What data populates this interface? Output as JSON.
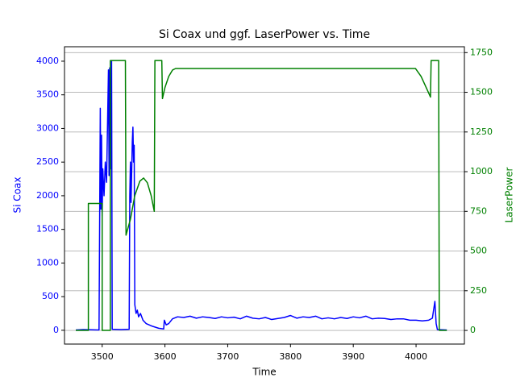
{
  "chart_data": {
    "type": "line",
    "title": "Si Coax und ggf. LaserPower vs. Time",
    "x_label": "Time",
    "y_label": "Si Coax",
    "y2_label": "LaserPower",
    "xlim": [
      3440,
      4077
    ],
    "xticks": [
      3500,
      3600,
      3700,
      3800,
      3900,
      4000
    ],
    "ylim": [
      -205,
      4215
    ],
    "yticks": [
      0,
      500,
      1000,
      1500,
      2000,
      2500,
      3000,
      3500,
      4000
    ],
    "y2lim": [
      -86,
      1787
    ],
    "y2ticks": [
      0,
      250,
      500,
      750,
      1000,
      1250,
      1500,
      1750
    ],
    "grid": "y2",
    "series": [
      {
        "name": "Si Coax",
        "color": "#0000ff",
        "axis": "y",
        "x": [
          3458,
          3470,
          3495,
          3497,
          3498,
          3499,
          3500,
          3501,
          3503,
          3505,
          3507,
          3510,
          3511,
          3512,
          3514,
          3515,
          3516,
          3530,
          3543,
          3544,
          3545,
          3546,
          3548,
          3549,
          3550,
          3551,
          3552,
          3554,
          3556,
          3558,
          3561,
          3565,
          3570,
          3580,
          3590,
          3598,
          3599,
          3602,
          3606,
          3612,
          3620,
          3630,
          3640,
          3650,
          3660,
          3670,
          3680,
          3690,
          3700,
          3710,
          3720,
          3730,
          3740,
          3750,
          3760,
          3770,
          3780,
          3790,
          3800,
          3810,
          3820,
          3830,
          3840,
          3850,
          3860,
          3870,
          3880,
          3890,
          3900,
          3910,
          3920,
          3930,
          3940,
          3950,
          3960,
          3970,
          3980,
          3990,
          4000,
          4010,
          4020,
          4026,
          4030,
          4032,
          4034,
          4049
        ],
        "values": [
          5,
          10,
          5,
          3300,
          1800,
          2900,
          1700,
          2400,
          2000,
          2500,
          2200,
          3870,
          2300,
          3900,
          2400,
          4000,
          15,
          10,
          15,
          2000,
          2500,
          1900,
          2800,
          3020,
          2500,
          2750,
          380,
          250,
          300,
          200,
          250,
          150,
          100,
          60,
          30,
          20,
          150,
          80,
          100,
          170,
          200,
          190,
          210,
          180,
          200,
          190,
          175,
          200,
          185,
          195,
          170,
          210,
          180,
          170,
          190,
          160,
          175,
          190,
          220,
          180,
          200,
          190,
          210,
          170,
          185,
          170,
          190,
          175,
          200,
          185,
          210,
          170,
          180,
          175,
          160,
          170,
          170,
          150,
          150,
          140,
          150,
          180,
          430,
          100,
          10,
          5
        ]
      },
      {
        "name": "LaserPower",
        "color": "#008000",
        "axis": "y2",
        "x": [
          3458,
          3478,
          3478,
          3500,
          3500,
          3513,
          3513,
          3537,
          3538,
          3545,
          3552,
          3560,
          3566,
          3572,
          3578,
          3583,
          3584,
          3595,
          3596,
          3600,
          3606,
          3612,
          3617,
          3999,
          4008,
          4015,
          4023,
          4024,
          4036,
          4037,
          4049
        ],
        "values": [
          0,
          0,
          800,
          800,
          0,
          0,
          1700,
          1700,
          600,
          700,
          850,
          940,
          960,
          930,
          850,
          750,
          1700,
          1700,
          1460,
          1530,
          1600,
          1640,
          1650,
          1650,
          1600,
          1540,
          1470,
          1700,
          1700,
          0,
          0
        ]
      }
    ]
  }
}
